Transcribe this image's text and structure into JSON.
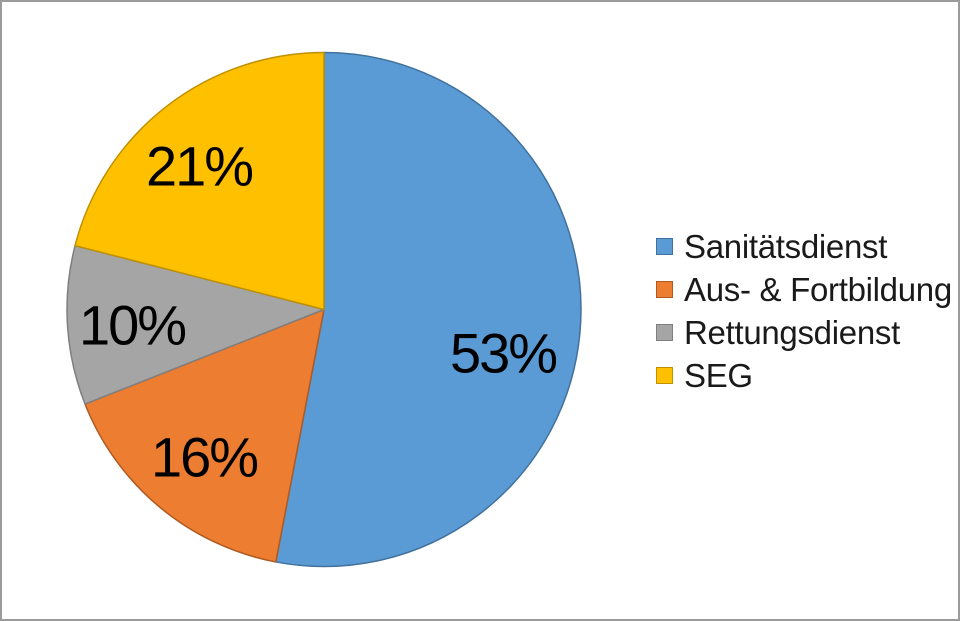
{
  "chart_data": {
    "type": "pie",
    "title": "",
    "categories": [
      "Sanitätsdienst",
      "Aus- & Fortbildung",
      "Rettungsdienst",
      "SEG"
    ],
    "values": [
      53,
      16,
      10,
      21
    ],
    "unit": "%",
    "data_labels": [
      "53%",
      "16%",
      "10%",
      "21%"
    ],
    "slice_colors": [
      "#5B9BD5",
      "#ED7D31",
      "#A5A5A5",
      "#FFC000"
    ],
    "slice_border_colors": [
      "#41719C",
      "#AE5A21",
      "#7F7F7F",
      "#BF9000"
    ],
    "data_label_color": "#000000",
    "legend_text_color": "#1A1A1A",
    "background_color": "#FFFFFF",
    "frame_border_color": "#9B9B9B",
    "legend_position": "right",
    "start_angle_deg": 0,
    "direction": "clockwise",
    "grid": false
  }
}
